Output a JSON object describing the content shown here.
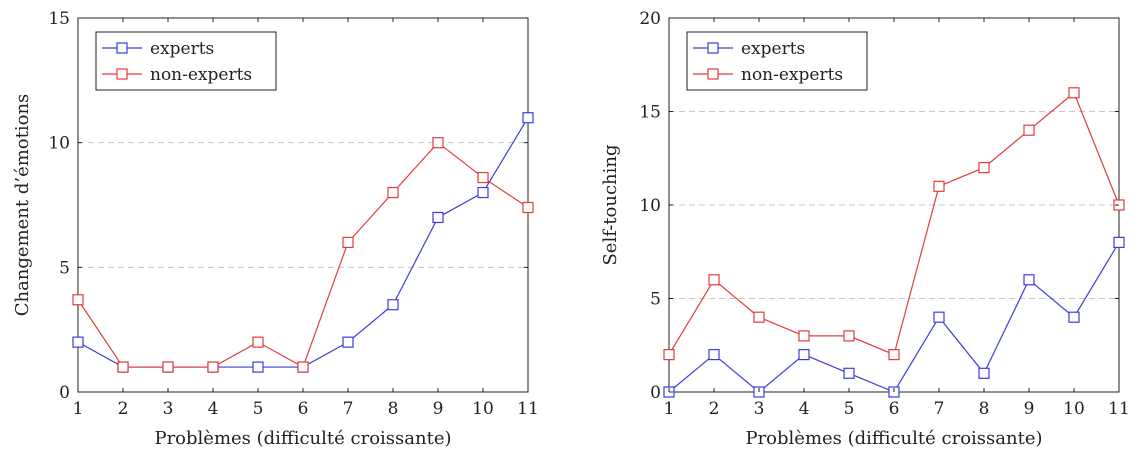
{
  "chart_data": [
    {
      "type": "line",
      "xlabel": "Problèmes (difficulté croissante)",
      "ylabel": "Changement d’émotions",
      "x": [
        1,
        2,
        3,
        4,
        5,
        6,
        7,
        8,
        9,
        10,
        11
      ],
      "xlim": [
        1,
        11
      ],
      "ylim": [
        0,
        15
      ],
      "yticks": [
        0,
        5,
        10,
        15
      ],
      "grid": "horizontal dashed",
      "legend": "top-left",
      "series": [
        {
          "name": "experts",
          "color": "#3c3cdc",
          "marker": "square",
          "values": [
            2,
            1,
            1,
            1,
            1,
            1,
            2,
            3.5,
            7,
            8,
            11
          ]
        },
        {
          "name": "non-experts",
          "color": "#e23c3c",
          "marker": "square",
          "values": [
            3.7,
            1,
            1,
            1,
            2,
            1,
            6,
            8,
            10,
            8.6,
            7.4
          ]
        }
      ]
    },
    {
      "type": "line",
      "xlabel": "Problèmes (difficulté croissante)",
      "ylabel": "Self-touching",
      "x": [
        1,
        2,
        3,
        4,
        5,
        6,
        7,
        8,
        9,
        10,
        11
      ],
      "xlim": [
        1,
        11
      ],
      "ylim": [
        0,
        20
      ],
      "yticks": [
        0,
        5,
        10,
        15,
        20
      ],
      "grid": "horizontal dashed",
      "legend": "top-left",
      "series": [
        {
          "name": "experts",
          "color": "#3c3cdc",
          "marker": "square",
          "values": [
            0,
            2,
            0,
            2,
            1,
            0,
            4,
            1,
            6,
            4,
            8
          ]
        },
        {
          "name": "non-experts",
          "color": "#e23c3c",
          "marker": "square",
          "values": [
            2,
            6,
            4,
            3,
            3,
            2,
            11,
            12,
            14,
            16,
            10
          ]
        }
      ]
    }
  ]
}
